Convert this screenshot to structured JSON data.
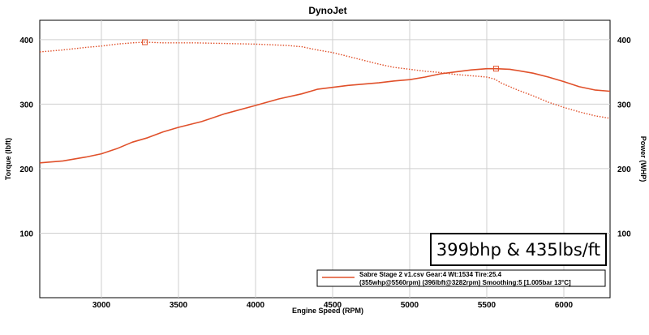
{
  "chart_data": {
    "type": "line",
    "title": "DynoJet",
    "xlabel": "Engine Speed (RPM)",
    "ylabel_left": "Torque (lbft)",
    "ylabel_right": "Power (WHP)",
    "xlim": [
      2600,
      6300
    ],
    "ylim": [
      0,
      430
    ],
    "x_ticks": [
      3000,
      3500,
      4000,
      4500,
      5000,
      5500,
      6000
    ],
    "y_ticks": [
      100,
      200,
      300,
      400
    ],
    "grid": true,
    "legend_position": "bottom-right",
    "series": [
      {
        "name": "Sabre Stage 2 v1.csv Gear:4 Wt:1534 Tire:25.4",
        "axis": "right",
        "style": "solid",
        "color": "#e0502a",
        "x": [
          2600,
          2750,
          2900,
          3000,
          3100,
          3200,
          3300,
          3400,
          3500,
          3650,
          3800,
          4000,
          4150,
          4300,
          4400,
          4500,
          4600,
          4700,
          4800,
          4900,
          5000,
          5100,
          5200,
          5300,
          5400,
          5500,
          5560,
          5650,
          5800,
          5900,
          6000,
          6100,
          6200,
          6300
        ],
        "y": [
          209,
          212,
          218,
          223,
          231,
          241,
          248,
          257,
          264,
          273,
          285,
          298,
          308,
          316,
          323,
          326,
          329,
          331,
          333,
          336,
          338,
          342,
          347,
          350,
          353,
          355,
          355,
          354,
          348,
          342,
          335,
          327,
          322,
          320
        ]
      },
      {
        "name": "Torque",
        "axis": "left",
        "style": "dotted",
        "color": "#e0502a",
        "x": [
          2600,
          2750,
          2900,
          3000,
          3100,
          3200,
          3282,
          3400,
          3600,
          3800,
          4000,
          4200,
          4300,
          4400,
          4500,
          4600,
          4700,
          4800,
          4900,
          5000,
          5100,
          5200,
          5300,
          5400,
          5500,
          5550,
          5600,
          5700,
          5800,
          5900,
          6000,
          6100,
          6200,
          6300
        ],
        "y": [
          381,
          384,
          388,
          390,
          393,
          395,
          396,
          395,
          395,
          394,
          393,
          391,
          389,
          384,
          380,
          374,
          368,
          362,
          357,
          354,
          351,
          349,
          346,
          344,
          342,
          339,
          332,
          322,
          313,
          303,
          295,
          288,
          282,
          278
        ]
      }
    ],
    "markers": [
      {
        "series": 0,
        "x": 5560,
        "y": 355
      },
      {
        "series": 1,
        "x": 3282,
        "y": 396
      }
    ],
    "legend": {
      "line1": "Sabre Stage 2 v1.csv Gear:4 Wt:1534 Tire:25.4",
      "line2": "(355whp@5560rpm) (396lbft@3282rpm) Smoothing:5 [1.005bar 13°C]"
    },
    "banner": "399bhp & 435lbs/ft"
  }
}
